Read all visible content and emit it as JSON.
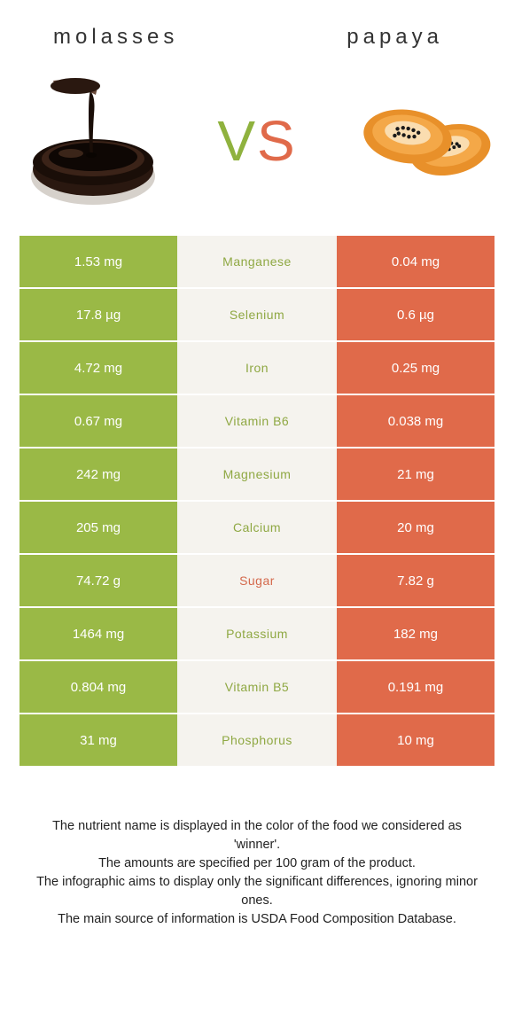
{
  "colors": {
    "left_bg": "#9ab946",
    "right_bg": "#e06a4a",
    "mid_bg": "#f5f3ee",
    "left_text": "#8fa843",
    "right_text": "#d4694c"
  },
  "header": {
    "left_title": "molasses",
    "right_title": "papaya"
  },
  "vs": {
    "v": "V",
    "s": "S"
  },
  "rows": [
    {
      "left": "1.53 mg",
      "label": "Manganese",
      "right": "0.04 mg",
      "winner": "left"
    },
    {
      "left": "17.8 µg",
      "label": "Selenium",
      "right": "0.6 µg",
      "winner": "left"
    },
    {
      "left": "4.72 mg",
      "label": "Iron",
      "right": "0.25 mg",
      "winner": "left"
    },
    {
      "left": "0.67 mg",
      "label": "Vitamin B6",
      "right": "0.038 mg",
      "winner": "left"
    },
    {
      "left": "242 mg",
      "label": "Magnesium",
      "right": "21 mg",
      "winner": "left"
    },
    {
      "left": "205 mg",
      "label": "Calcium",
      "right": "20 mg",
      "winner": "left"
    },
    {
      "left": "74.72 g",
      "label": "Sugar",
      "right": "7.82 g",
      "winner": "right"
    },
    {
      "left": "1464 mg",
      "label": "Potassium",
      "right": "182 mg",
      "winner": "left"
    },
    {
      "left": "0.804 mg",
      "label": "Vitamin B5",
      "right": "0.191 mg",
      "winner": "left"
    },
    {
      "left": "31 mg",
      "label": "Phosphorus",
      "right": "10 mg",
      "winner": "left"
    }
  ],
  "footnotes": [
    "The nutrient name is displayed in the color of the food we considered as 'winner'.",
    "The amounts are specified per 100 gram of the product.",
    "The infographic aims to display only the significant differences, ignoring minor ones.",
    "The main source of information is USDA Food Composition Database."
  ]
}
